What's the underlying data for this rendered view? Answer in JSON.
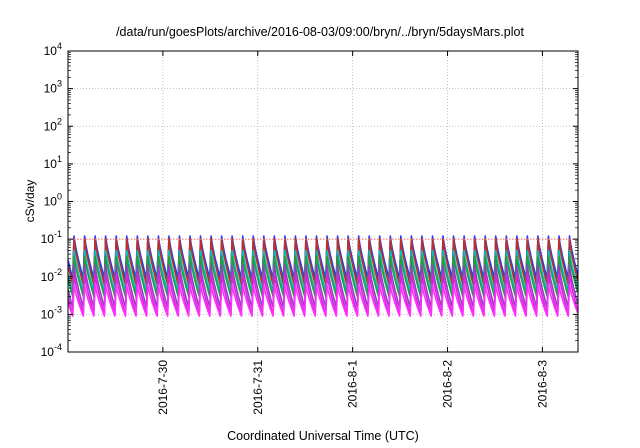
{
  "chart_data": {
    "type": "line",
    "title": "/data/run/goesPlots/archive/2016-08-03/09:00/bryn/../bryn/5daysMars.plot",
    "xlabel": "Coordinated Universal Time (UTC)",
    "ylabel": "cSv/day",
    "yscale": "log",
    "ylim": [
      0.0001,
      10000
    ],
    "yticks": [
      {
        "value": 0.0001,
        "mantissa": "10",
        "exp": "-4"
      },
      {
        "value": 0.001,
        "mantissa": "10",
        "exp": "-3"
      },
      {
        "value": 0.01,
        "mantissa": "10",
        "exp": "-2"
      },
      {
        "value": 0.1,
        "mantissa": "10",
        "exp": "-1"
      },
      {
        "value": 1,
        "mantissa": "10",
        "exp": "0"
      },
      {
        "value": 10,
        "mantissa": "10",
        "exp": "1"
      },
      {
        "value": 100,
        "mantissa": "10",
        "exp": "2"
      },
      {
        "value": 1000,
        "mantissa": "10",
        "exp": "3"
      },
      {
        "value": 10000,
        "mantissa": "10",
        "exp": "4"
      }
    ],
    "xlim": [
      "2016-07-29T00:00",
      "2016-08-03T09:00"
    ],
    "xticks": [
      {
        "value": "2016-07-30T00:00",
        "label": "2016-7-30"
      },
      {
        "value": "2016-07-31T00:00",
        "label": "2016-7-31"
      },
      {
        "value": "2016-08-01T00:00",
        "label": "2016-8-1"
      },
      {
        "value": "2016-08-02T00:00",
        "label": "2016-8-2"
      },
      {
        "value": "2016-08-03T00:00",
        "label": "2016-8-3"
      }
    ],
    "grid": true,
    "reference_line": {
      "value": 0.1,
      "color": "#ff6666"
    },
    "oscillation": {
      "cycles_per_day": 9,
      "phase_offset_days": 0.05
    },
    "series": [
      {
        "color": "#1a3cff",
        "peak": 0.12,
        "trough": 0.009
      },
      {
        "color": "#2255dd",
        "peak": 0.09,
        "trough": 0.007
      },
      {
        "color": "#c03020",
        "peak": 0.1,
        "trough": 0.006
      },
      {
        "color": "#00c0c0",
        "peak": 0.05,
        "trough": 0.004
      },
      {
        "color": "#20a040",
        "peak": 0.035,
        "trough": 0.003
      },
      {
        "color": "#9040c0",
        "peak": 0.02,
        "trough": 0.0015
      },
      {
        "color": "#e020e0",
        "peak": 0.012,
        "trough": 0.001
      },
      {
        "color": "#ff30ff",
        "peak": 0.006,
        "trough": 0.0009
      }
    ]
  }
}
